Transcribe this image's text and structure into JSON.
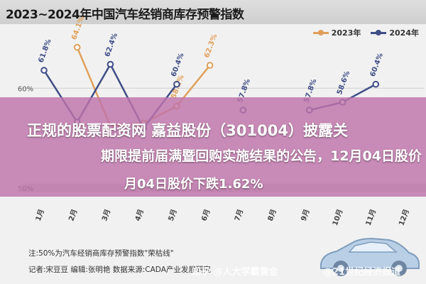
{
  "title": "2023~2024年中国汽车经销商库存预警指数",
  "legend": {
    "a": "2023年",
    "b": "2024年"
  },
  "colors": {
    "s2023": "#e0a05a",
    "s2024": "#3f4d86",
    "band": "#c7c7c7"
  },
  "headline": {
    "line1": "正规的股票配资网 嘉益股份（301004）披露关",
    "line2": "期限提前届满暨回购实施结果的公告，12月04日股价",
    "line3": "月04日股价下跌1.62%"
  },
  "note1": "注:50%为汽车经销商库存预警指数\"荣枯线\"",
  "note2": "记者:宋豆豆  编辑:张明艳  数据来源:CADA产业发展研究",
  "watermark1": "知乎 @人大学霸黄金",
  "watermark2": "@21世纪经济报道",
  "chart_data": {
    "type": "line",
    "title": "2023~2024年中国汽车经销商库存预警指数",
    "categories": [
      "1月",
      "2月",
      "3月",
      "4月",
      "5月",
      "6月",
      "7月",
      "8月",
      "9月",
      "10月",
      "11月",
      "12月"
    ],
    "ytick_labels": [
      "60%",
      "50%"
    ],
    "ylim": [
      45,
      66
    ],
    "series": [
      {
        "name": "2023年",
        "values": [
          null,
          64.1,
          56.2,
          56.5,
          58.2,
          62.3,
          null,
          null,
          null,
          null,
          null,
          null
        ]
      },
      {
        "name": "2024年",
        "values": [
          61.8,
          56.6,
          62.4,
          56.0,
          60.4,
          null,
          57.8,
          null,
          57.8,
          58.6,
          60.4,
          null
        ]
      }
    ],
    "point_labels_2023": [
      "",
      "64.1%",
      "",
      "",
      "58.2%",
      "62.3%",
      "",
      "",
      "",
      "",
      "",
      ""
    ],
    "point_labels_2024": [
      "61.8%",
      "",
      "62.4%",
      "",
      "60.4%",
      "",
      "57.8%",
      "",
      "57.8%",
      "58.6%",
      "60.4%",
      ""
    ],
    "grid": true,
    "legend_position": "top-right"
  }
}
